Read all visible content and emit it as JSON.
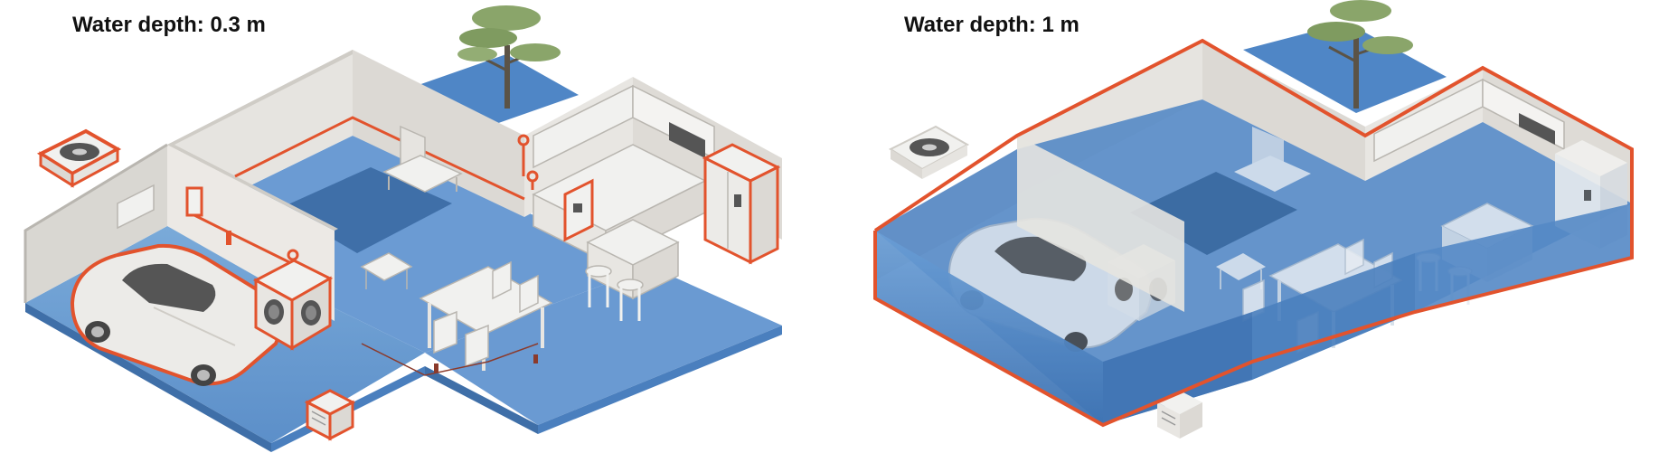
{
  "panels": [
    {
      "title": "Water depth: 0.3 m",
      "water_depth_m": 0.3
    },
    {
      "title": "Water depth: 1 m",
      "water_depth_m": 1
    }
  ],
  "colors": {
    "water_shallow": "#6f9fd6",
    "water_deep": "#4a7fbe",
    "water_dark": "#2f5f95",
    "wall": "#e6e4e0",
    "wall_shade": "#cfccc6",
    "wall_edge": "#b9b6b0",
    "highlight": "#e2532d",
    "furniture": "#f1f1ef",
    "tree_canopy": "#8aa56a",
    "tree_trunk": "#5b5346",
    "pond": "#4a7fbe"
  }
}
